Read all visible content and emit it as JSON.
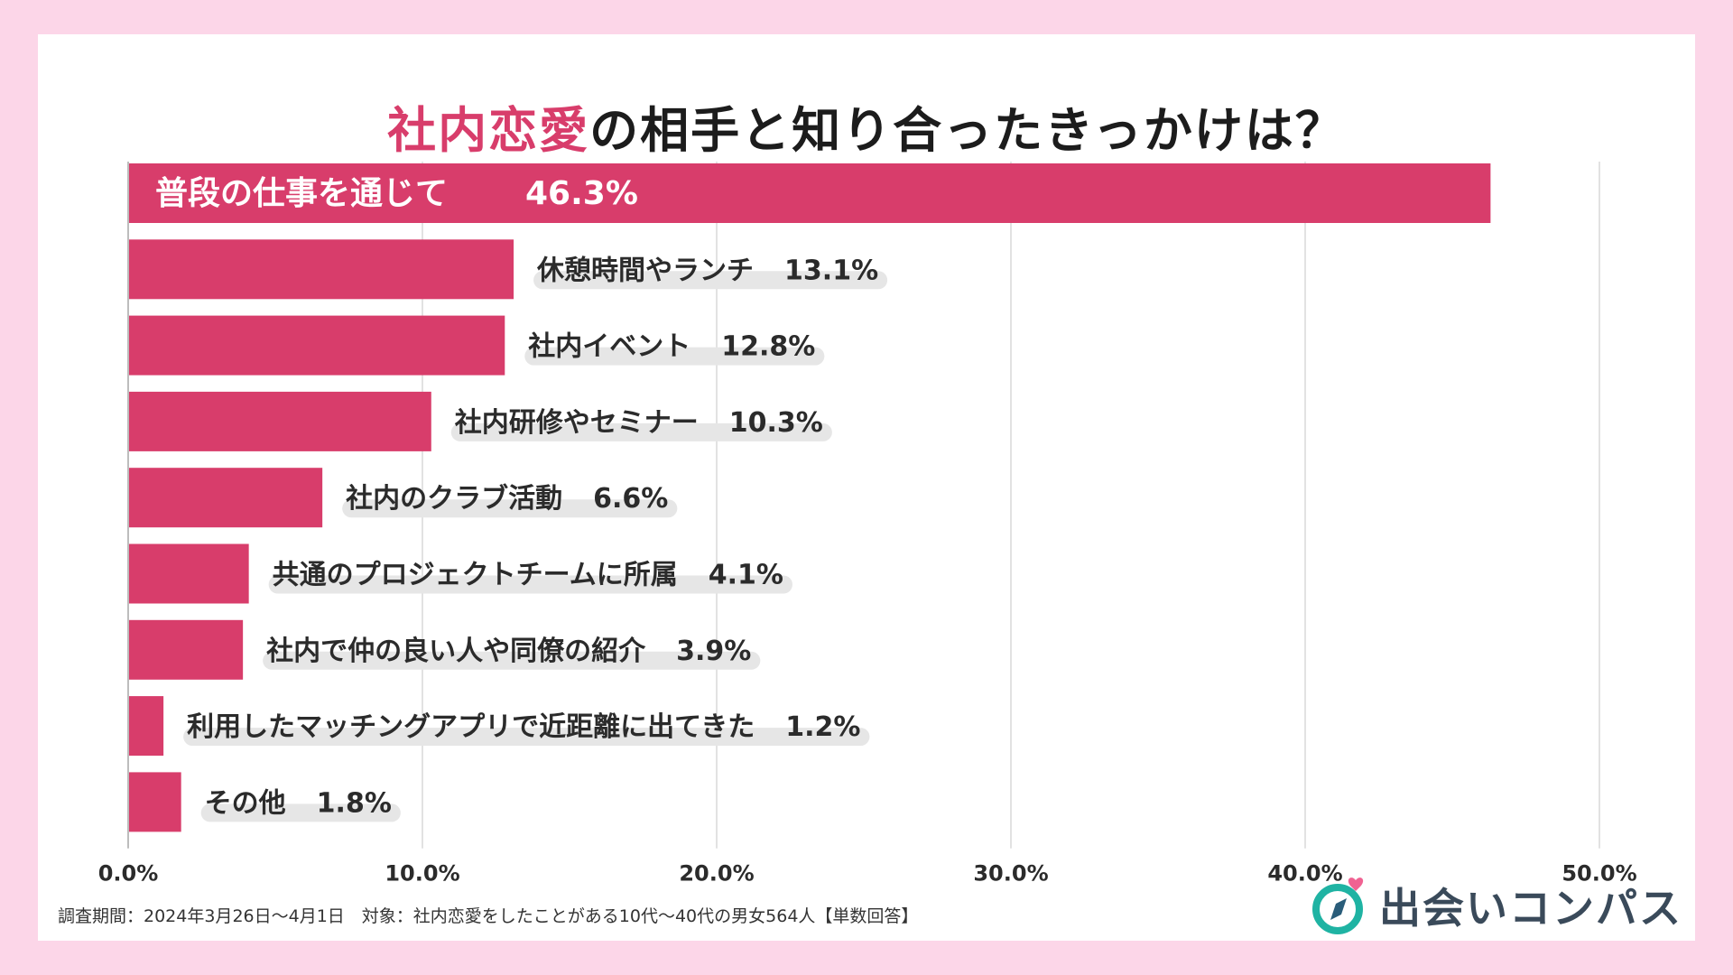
{
  "chart_data": {
    "type": "bar",
    "orientation": "horizontal",
    "title_highlight": "社内恋愛",
    "title_rest": "の相手と知り合ったきっかけは？",
    "categories": [
      "普段の仕事を通じて",
      "休憩時間やランチ",
      "社内イベント",
      "社内研修やセミナー",
      "社内のクラブ活動",
      "共通のプロジェクトチームに所属",
      "社内で仲の良い人や同僚の紹介",
      "利用したマッチングアプリで近距離に出てきた",
      "その他"
    ],
    "values": [
      46.3,
      13.1,
      12.8,
      10.3,
      6.6,
      4.1,
      3.9,
      1.2,
      1.8
    ],
    "value_labels": [
      "46.3%",
      "13.1%",
      "12.8%",
      "10.3%",
      "6.6%",
      "4.1%",
      "3.9%",
      "1.2%",
      "1.8%"
    ],
    "xlim": [
      0,
      50
    ],
    "xticks": [
      0,
      10,
      20,
      30,
      40,
      50
    ],
    "xtick_labels": [
      "0.0%",
      "10.0%",
      "20.0%",
      "30.0%",
      "40.0%",
      "50.0%"
    ],
    "grid": true,
    "bar_color": "#d83d6b"
  },
  "footnote": "調査期間：2024年3月26日～4月1日　対象：社内恋愛をしたことがある10代～40代の男女564人【単数回答】",
  "logo": {
    "text": "出会いコンパス",
    "icon": "compass-heart-icon"
  },
  "colors": {
    "accent": "#d83d6b",
    "background": "#fcd6e8",
    "label_pill": "#e6e6e6"
  }
}
